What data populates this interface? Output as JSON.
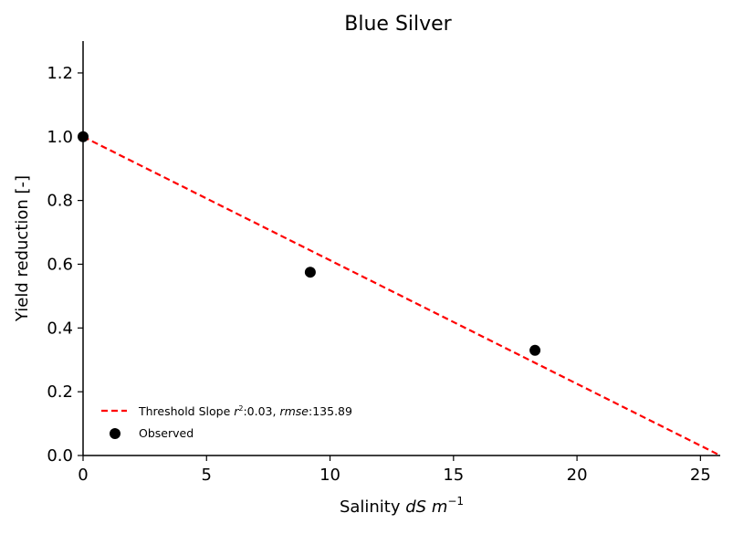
{
  "chart_data": {
    "type": "scatter",
    "title": "Blue Silver",
    "xlabel_prefix": "Salinity ",
    "xlabel_italic": "dS m",
    "xlabel_sup": "−1",
    "ylabel": "Yield reduction [-]",
    "xlim": [
      0,
      25.8
    ],
    "ylim": [
      0,
      1.3
    ],
    "xticks": [
      0,
      5,
      10,
      15,
      20,
      25
    ],
    "yticks": [
      0.0,
      0.2,
      0.4,
      0.6,
      0.8,
      1.0,
      1.2
    ],
    "xtick_labels": [
      "0",
      "5",
      "10",
      "15",
      "20",
      "25"
    ],
    "ytick_labels": [
      "0.0",
      "0.2",
      "0.4",
      "0.6",
      "0.8",
      "1.0",
      "1.2"
    ],
    "grid": false,
    "legend_position": "lower-left",
    "series": [
      {
        "name": "Threshold Slope",
        "kind": "line",
        "style": "dashed",
        "color": "#ff0000",
        "x": [
          0,
          25.8
        ],
        "y": [
          1.0,
          0.0
        ]
      },
      {
        "name": "Observed",
        "kind": "scatter",
        "color": "#000000",
        "x": [
          0,
          9.2,
          18.3
        ],
        "y": [
          1.0,
          0.575,
          0.33
        ]
      }
    ],
    "legend": {
      "line_label_prefix": "Threshold Slope ",
      "line_label_r": "r",
      "line_label_r_sup": "2",
      "line_label_mid": ":0.03, ",
      "line_label_rmse": "rmse",
      "line_label_rmse_value": ":135.89",
      "observed_label": "Observed"
    }
  }
}
